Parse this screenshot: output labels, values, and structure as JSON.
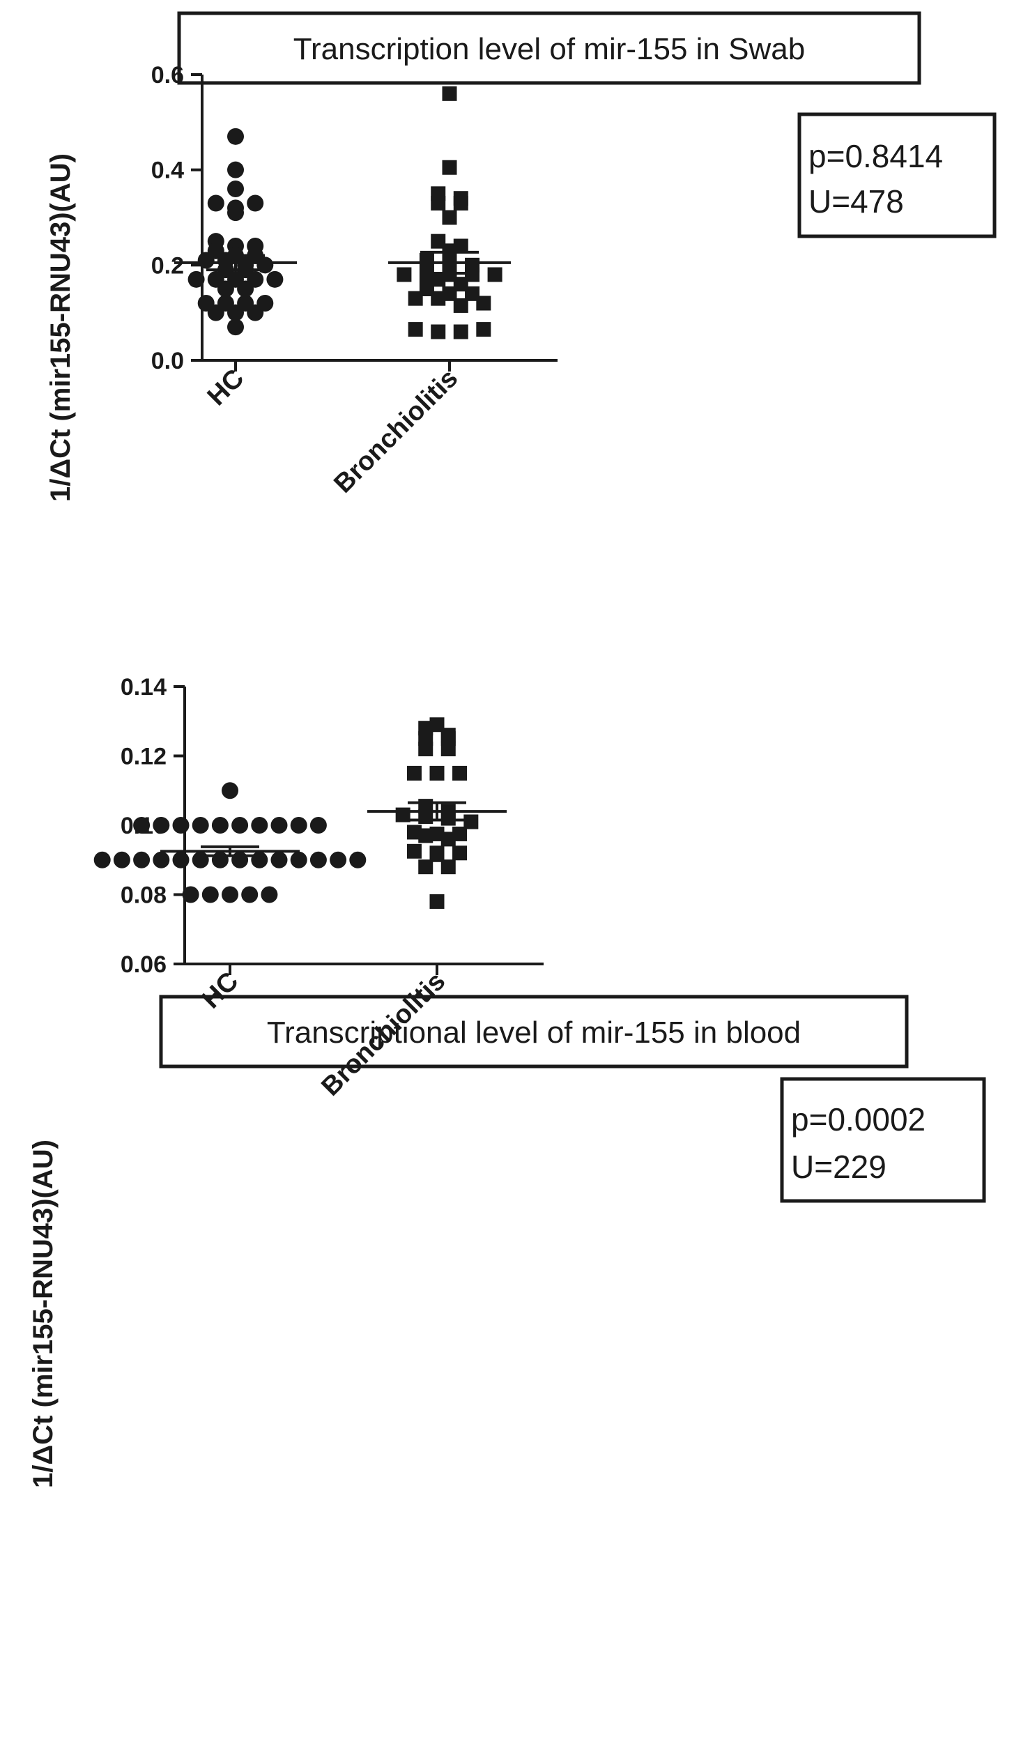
{
  "chart_data": [
    {
      "type": "scatter",
      "subtype": "dot-plot-with-mean-sem",
      "title": "Transcription level of mir-155 in Swab",
      "ylabel": "1/ΔCt (mir155-RNU43)(AU)",
      "xlabel": "",
      "ylim": [
        0.0,
        0.6
      ],
      "yticks": [
        0.0,
        0.2,
        0.4,
        0.6
      ],
      "ytick_labels": [
        "0.0",
        "0.2",
        "0.4",
        "0.6"
      ],
      "categories": [
        "HC",
        "Bronchiolitis"
      ],
      "stats": {
        "p_label": "p=0.8414",
        "u_label": "U=478"
      },
      "series": [
        {
          "name": "HC",
          "marker": "circle",
          "mean": 0.205,
          "sem": 0.015,
          "values": [
            0.47,
            0.4,
            0.36,
            0.33,
            0.32,
            0.33,
            0.31,
            0.25,
            0.24,
            0.24,
            0.23,
            0.22,
            0.22,
            0.21,
            0.21,
            0.2,
            0.2,
            0.19,
            0.19,
            0.17,
            0.17,
            0.17,
            0.17,
            0.17,
            0.15,
            0.15,
            0.12,
            0.12,
            0.12,
            0.12,
            0.1,
            0.1,
            0.1,
            0.07
          ]
        },
        {
          "name": "Bronchiolitis",
          "marker": "square",
          "mean": 0.205,
          "sem": 0.022,
          "values": [
            0.56,
            0.405,
            0.35,
            0.34,
            0.33,
            0.33,
            0.3,
            0.25,
            0.24,
            0.23,
            0.21,
            0.2,
            0.2,
            0.18,
            0.18,
            0.18,
            0.18,
            0.18,
            0.17,
            0.16,
            0.15,
            0.14,
            0.14,
            0.13,
            0.13,
            0.115,
            0.12,
            0.065,
            0.06,
            0.06,
            0.065
          ]
        }
      ]
    },
    {
      "type": "scatter",
      "subtype": "dot-plot-with-mean-sem",
      "title": "Transcriptional level of mir-155 in blood",
      "ylabel": "1/ΔCt (mir155-RNU43)(AU)",
      "xlabel": "",
      "ylim": [
        0.06,
        0.14
      ],
      "yticks": [
        0.06,
        0.08,
        0.1,
        0.12,
        0.14
      ],
      "ytick_labels": [
        "0.06",
        "0.08",
        "0.10",
        "0.12",
        "0.14"
      ],
      "categories": [
        "HC",
        "Bronchiolitis"
      ],
      "stats": {
        "p_label": "p=0.0002",
        "u_label": "U=229"
      },
      "series": [
        {
          "name": "HC",
          "marker": "circle",
          "mean": 0.0925,
          "sem": 0.0013,
          "values": [
            0.11,
            0.1,
            0.1,
            0.1,
            0.1,
            0.1,
            0.1,
            0.1,
            0.1,
            0.1,
            0.1,
            0.09,
            0.09,
            0.09,
            0.09,
            0.09,
            0.09,
            0.09,
            0.09,
            0.09,
            0.09,
            0.09,
            0.09,
            0.09,
            0.09,
            0.08,
            0.08,
            0.08,
            0.08,
            0.08
          ]
        },
        {
          "name": "Bronchiolitis",
          "marker": "square",
          "mean": 0.104,
          "sem": 0.0025,
          "values": [
            0.129,
            0.128,
            0.126,
            0.125,
            0.125,
            0.122,
            0.122,
            0.115,
            0.115,
            0.115,
            0.1055,
            0.104,
            0.103,
            0.1025,
            0.102,
            0.101,
            0.098,
            0.0975,
            0.097,
            0.0975,
            0.096,
            0.0925,
            0.092,
            0.092,
            0.0915,
            0.088,
            0.088,
            0.078
          ]
        }
      ]
    }
  ],
  "colors": {
    "ink": "#1a1a1a",
    "background": "#ffffff"
  }
}
